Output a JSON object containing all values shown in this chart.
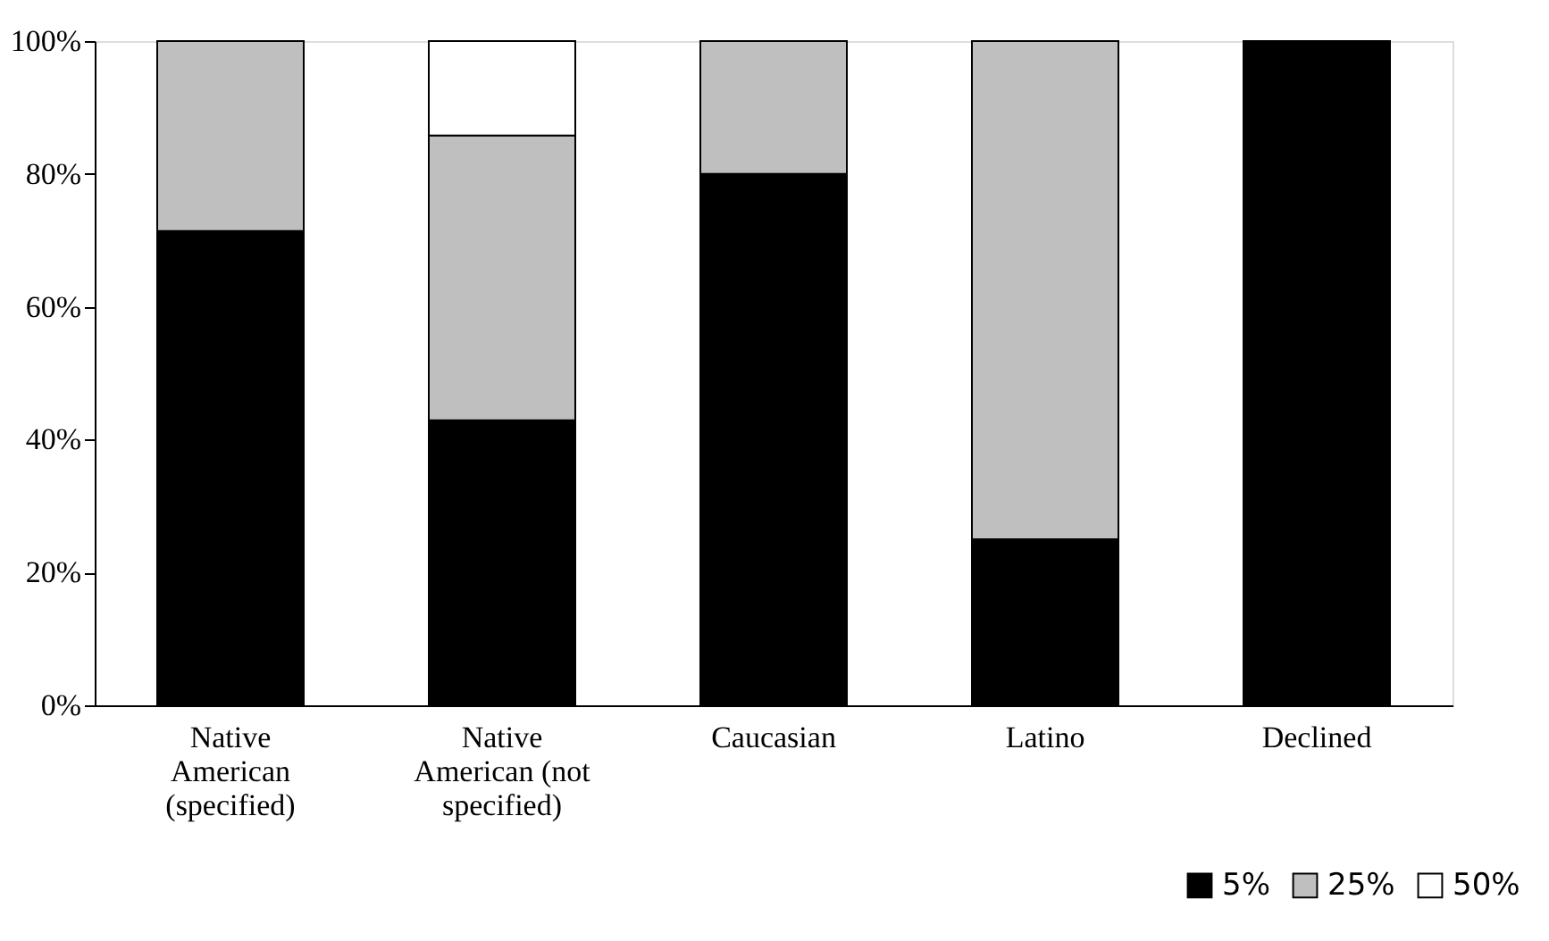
{
  "chart_data": {
    "type": "bar",
    "stacked": true,
    "categories": [
      "Native American (specified)",
      "Native American (not specified)",
      "Caucasian",
      "Latino",
      "Declined"
    ],
    "series": [
      {
        "name": "5%",
        "color": "#000000",
        "values": [
          71.4,
          42.9,
          80,
          25,
          100
        ]
      },
      {
        "name": "25%",
        "color": "#bfbfbf",
        "values": [
          28.6,
          42.9,
          20,
          75,
          null
        ]
      },
      {
        "name": "50%",
        "color": "#ffffff",
        "values": [
          null,
          14.2,
          null,
          null,
          null
        ]
      }
    ],
    "ylim": [
      0,
      100
    ],
    "yticks": [
      {
        "value": 0,
        "label": "0%"
      },
      {
        "value": 20,
        "label": "20%"
      },
      {
        "value": 40,
        "label": "40%"
      },
      {
        "value": 60,
        "label": "60%"
      },
      {
        "value": 80,
        "label": "80%"
      },
      {
        "value": 100,
        "label": "100%"
      }
    ],
    "grid": false,
    "legend": "bottom right"
  }
}
